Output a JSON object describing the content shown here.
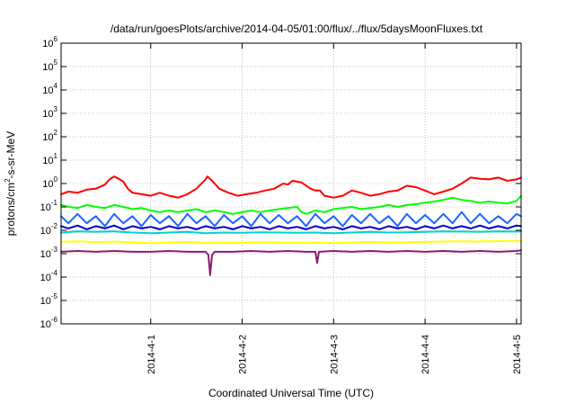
{
  "chart_data": {
    "type": "line",
    "title": "/data/run/goesPlots/archive/2014-04-05/01:00/flux/../flux/5daysMoonFluxes.txt",
    "xlabel": "Coordinated Universal Time (UTC)",
    "ylabel": "protons/cm²-s-sr-MeV",
    "ylabel_parts": {
      "pre": "protons/cm",
      "sup": "2",
      "post": "-s-sr-MeV"
    },
    "y_scale": "log",
    "ylim": [
      1e-06,
      1000000.0
    ],
    "y_ticks": [
      {
        "base": "10",
        "exp": "-6",
        "value": 1e-06
      },
      {
        "base": "10",
        "exp": "-5",
        "value": 1e-05
      },
      {
        "base": "10",
        "exp": "-4",
        "value": 0.0001
      },
      {
        "base": "10",
        "exp": "-3",
        "value": 0.001
      },
      {
        "base": "10",
        "exp": "-2",
        "value": 0.01
      },
      {
        "base": "10",
        "exp": "-1",
        "value": 0.1
      },
      {
        "base": "10",
        "exp": "0",
        "value": 1.0
      },
      {
        "base": "10",
        "exp": "1",
        "value": 10.0
      },
      {
        "base": "10",
        "exp": "2",
        "value": 100.0
      },
      {
        "base": "10",
        "exp": "3",
        "value": 1000.0
      },
      {
        "base": "10",
        "exp": "4",
        "value": 10000.0
      },
      {
        "base": "10",
        "exp": "5",
        "value": 100000.0
      },
      {
        "base": "10",
        "exp": "6",
        "value": 1000000.0
      }
    ],
    "x_unit": "days since 2014-4-1",
    "xlim": [
      -0.98,
      4.05
    ],
    "x_ticks": [
      {
        "label": "2014-4-1",
        "value": 0
      },
      {
        "label": "2014-4-2",
        "value": 1
      },
      {
        "label": "2014-4-3",
        "value": 2
      },
      {
        "label": "2014-4-4",
        "value": 3
      },
      {
        "label": "2014-4-5",
        "value": 4
      }
    ],
    "grid": true,
    "legend": "none",
    "series": [
      {
        "color": "#ff0000",
        "x": [
          -0.98,
          -0.9,
          -0.8,
          -0.7,
          -0.6,
          -0.5,
          -0.45,
          -0.4,
          -0.35,
          -0.3,
          -0.25,
          -0.2,
          -0.1,
          0,
          0.1,
          0.2,
          0.3,
          0.4,
          0.5,
          0.6,
          0.62,
          0.68,
          0.75,
          0.85,
          0.95,
          1.05,
          1.15,
          1.25,
          1.35,
          1.45,
          1.5,
          1.55,
          1.65,
          1.75,
          1.8,
          1.85,
          1.9,
          2.0,
          2.1,
          2.2,
          2.3,
          2.4,
          2.5,
          2.6,
          2.7,
          2.8,
          2.9,
          3.0,
          3.1,
          3.2,
          3.3,
          3.4,
          3.5,
          3.6,
          3.7,
          3.8,
          3.9,
          4.0,
          4.05
        ],
        "y": [
          0.35,
          0.45,
          0.4,
          0.55,
          0.6,
          0.9,
          1.5,
          2.0,
          1.6,
          1.2,
          0.6,
          0.4,
          0.35,
          0.3,
          0.4,
          0.3,
          0.25,
          0.35,
          0.6,
          1.5,
          2.0,
          1.2,
          0.6,
          0.4,
          0.3,
          0.35,
          0.4,
          0.5,
          0.6,
          1.0,
          0.9,
          1.3,
          1.1,
          0.6,
          0.5,
          0.5,
          0.3,
          0.25,
          0.3,
          0.5,
          0.4,
          0.3,
          0.35,
          0.45,
          0.5,
          0.8,
          0.7,
          0.5,
          0.35,
          0.45,
          0.6,
          1.0,
          1.8,
          1.6,
          1.5,
          1.8,
          1.3,
          1.5,
          1.8
        ]
      },
      {
        "color": "#00ff00",
        "x": [
          -0.98,
          -0.9,
          -0.8,
          -0.7,
          -0.6,
          -0.5,
          -0.4,
          -0.3,
          -0.2,
          -0.1,
          0,
          0.1,
          0.2,
          0.3,
          0.4,
          0.5,
          0.6,
          0.7,
          0.8,
          0.9,
          1.0,
          1.1,
          1.2,
          1.3,
          1.4,
          1.5,
          1.6,
          1.65,
          1.7,
          1.8,
          1.9,
          2.0,
          2.1,
          2.2,
          2.3,
          2.4,
          2.5,
          2.6,
          2.7,
          2.8,
          2.9,
          3.0,
          3.1,
          3.2,
          3.3,
          3.4,
          3.5,
          3.6,
          3.7,
          3.8,
          3.9,
          4.0,
          4.05
        ],
        "y": [
          0.12,
          0.1,
          0.09,
          0.12,
          0.1,
          0.09,
          0.12,
          0.1,
          0.08,
          0.09,
          0.07,
          0.06,
          0.07,
          0.06,
          0.07,
          0.08,
          0.06,
          0.07,
          0.06,
          0.05,
          0.06,
          0.07,
          0.06,
          0.07,
          0.08,
          0.09,
          0.1,
          0.06,
          0.05,
          0.07,
          0.06,
          0.08,
          0.09,
          0.1,
          0.08,
          0.09,
          0.1,
          0.12,
          0.1,
          0.12,
          0.13,
          0.15,
          0.17,
          0.2,
          0.25,
          0.2,
          0.18,
          0.15,
          0.17,
          0.15,
          0.14,
          0.18,
          0.3
        ]
      },
      {
        "color": "#1e64ff",
        "x": [
          -0.98,
          -0.9,
          -0.8,
          -0.7,
          -0.6,
          -0.5,
          -0.4,
          -0.3,
          -0.2,
          -0.1,
          0,
          0.1,
          0.2,
          0.3,
          0.4,
          0.5,
          0.6,
          0.7,
          0.8,
          0.9,
          1.0,
          1.1,
          1.2,
          1.3,
          1.4,
          1.5,
          1.6,
          1.7,
          1.8,
          1.9,
          2.0,
          2.1,
          2.2,
          2.3,
          2.4,
          2.5,
          2.6,
          2.7,
          2.8,
          2.9,
          3.0,
          3.1,
          3.2,
          3.3,
          3.4,
          3.5,
          3.6,
          3.7,
          3.8,
          3.9,
          4.0,
          4.05
        ],
        "y": [
          0.04,
          0.02,
          0.05,
          0.02,
          0.04,
          0.015,
          0.05,
          0.02,
          0.04,
          0.015,
          0.045,
          0.02,
          0.04,
          0.015,
          0.05,
          0.02,
          0.04,
          0.015,
          0.045,
          0.02,
          0.04,
          0.015,
          0.05,
          0.02,
          0.045,
          0.02,
          0.04,
          0.015,
          0.05,
          0.02,
          0.04,
          0.015,
          0.045,
          0.02,
          0.05,
          0.02,
          0.04,
          0.015,
          0.05,
          0.02,
          0.045,
          0.02,
          0.05,
          0.02,
          0.06,
          0.02,
          0.05,
          0.02,
          0.04,
          0.02,
          0.05,
          0.04
        ]
      },
      {
        "color": "#00d2d2",
        "x": [
          -0.98,
          -0.8,
          -0.6,
          -0.4,
          -0.2,
          0,
          0.2,
          0.4,
          0.6,
          0.8,
          1.0,
          1.2,
          1.4,
          1.6,
          1.8,
          2.0,
          2.2,
          2.4,
          2.6,
          2.8,
          3.0,
          3.2,
          3.4,
          3.6,
          3.8,
          4.0,
          4.05
        ],
        "y": [
          0.008,
          0.009,
          0.0085,
          0.009,
          0.008,
          0.0075,
          0.008,
          0.0085,
          0.0075,
          0.008,
          0.0078,
          0.0082,
          0.008,
          0.0078,
          0.008,
          0.0075,
          0.008,
          0.0085,
          0.008,
          0.0082,
          0.0085,
          0.009,
          0.0088,
          0.0085,
          0.009,
          0.0088,
          0.009
        ]
      },
      {
        "color": "#0000c8",
        "x": [
          -0.98,
          -0.9,
          -0.8,
          -0.7,
          -0.6,
          -0.5,
          -0.4,
          -0.3,
          -0.2,
          -0.1,
          0,
          0.1,
          0.2,
          0.3,
          0.4,
          0.5,
          0.6,
          0.7,
          0.8,
          0.9,
          1.0,
          1.1,
          1.2,
          1.3,
          1.4,
          1.5,
          1.6,
          1.7,
          1.8,
          1.9,
          2.0,
          2.1,
          2.2,
          2.3,
          2.4,
          2.5,
          2.6,
          2.7,
          2.8,
          2.9,
          3.0,
          3.1,
          3.2,
          3.3,
          3.4,
          3.5,
          3.6,
          3.7,
          3.8,
          3.9,
          4.0,
          4.05
        ],
        "y": [
          0.015,
          0.012,
          0.016,
          0.011,
          0.015,
          0.012,
          0.016,
          0.011,
          0.015,
          0.012,
          0.014,
          0.011,
          0.015,
          0.012,
          0.014,
          0.011,
          0.015,
          0.012,
          0.014,
          0.011,
          0.015,
          0.012,
          0.014,
          0.011,
          0.015,
          0.012,
          0.014,
          0.011,
          0.015,
          0.012,
          0.014,
          0.011,
          0.015,
          0.012,
          0.014,
          0.011,
          0.015,
          0.012,
          0.014,
          0.011,
          0.015,
          0.012,
          0.016,
          0.012,
          0.015,
          0.012,
          0.016,
          0.012,
          0.015,
          0.012,
          0.016,
          0.015
        ]
      },
      {
        "color": "#ffff00",
        "x": [
          -0.98,
          -0.8,
          -0.6,
          -0.4,
          -0.2,
          0,
          0.2,
          0.4,
          0.6,
          0.8,
          1.0,
          1.2,
          1.4,
          1.6,
          1.8,
          2.0,
          2.2,
          2.4,
          2.6,
          2.8,
          3.0,
          3.2,
          3.4,
          3.6,
          3.8,
          4.0,
          4.05
        ],
        "y": [
          0.0032,
          0.0034,
          0.0031,
          0.0033,
          0.003,
          0.0028,
          0.003,
          0.0032,
          0.0028,
          0.003,
          0.0029,
          0.0031,
          0.003,
          0.0029,
          0.003,
          0.0028,
          0.003,
          0.0032,
          0.003,
          0.0031,
          0.0032,
          0.0033,
          0.0034,
          0.0033,
          0.0035,
          0.0034,
          0.0035
        ]
      },
      {
        "color": "#8b1e6e",
        "x": [
          -0.98,
          -0.8,
          -0.6,
          -0.4,
          -0.2,
          0,
          0.2,
          0.4,
          0.6,
          0.63,
          0.65,
          0.67,
          0.7,
          0.9,
          1.1,
          1.3,
          1.5,
          1.7,
          1.8,
          1.82,
          1.84,
          2.0,
          2.2,
          2.4,
          2.6,
          2.8,
          3.0,
          3.2,
          3.4,
          3.6,
          3.8,
          4.0,
          4.05
        ],
        "y": [
          0.0012,
          0.0013,
          0.0012,
          0.0013,
          0.0012,
          0.0012,
          0.0013,
          0.0012,
          0.0012,
          0.0009,
          0.00012,
          0.0009,
          0.0012,
          0.0012,
          0.0013,
          0.0012,
          0.0013,
          0.0012,
          0.0012,
          0.0004,
          0.0012,
          0.0013,
          0.0012,
          0.0013,
          0.0012,
          0.0013,
          0.0012,
          0.0013,
          0.0012,
          0.0013,
          0.0012,
          0.0013,
          0.0014
        ]
      }
    ]
  }
}
